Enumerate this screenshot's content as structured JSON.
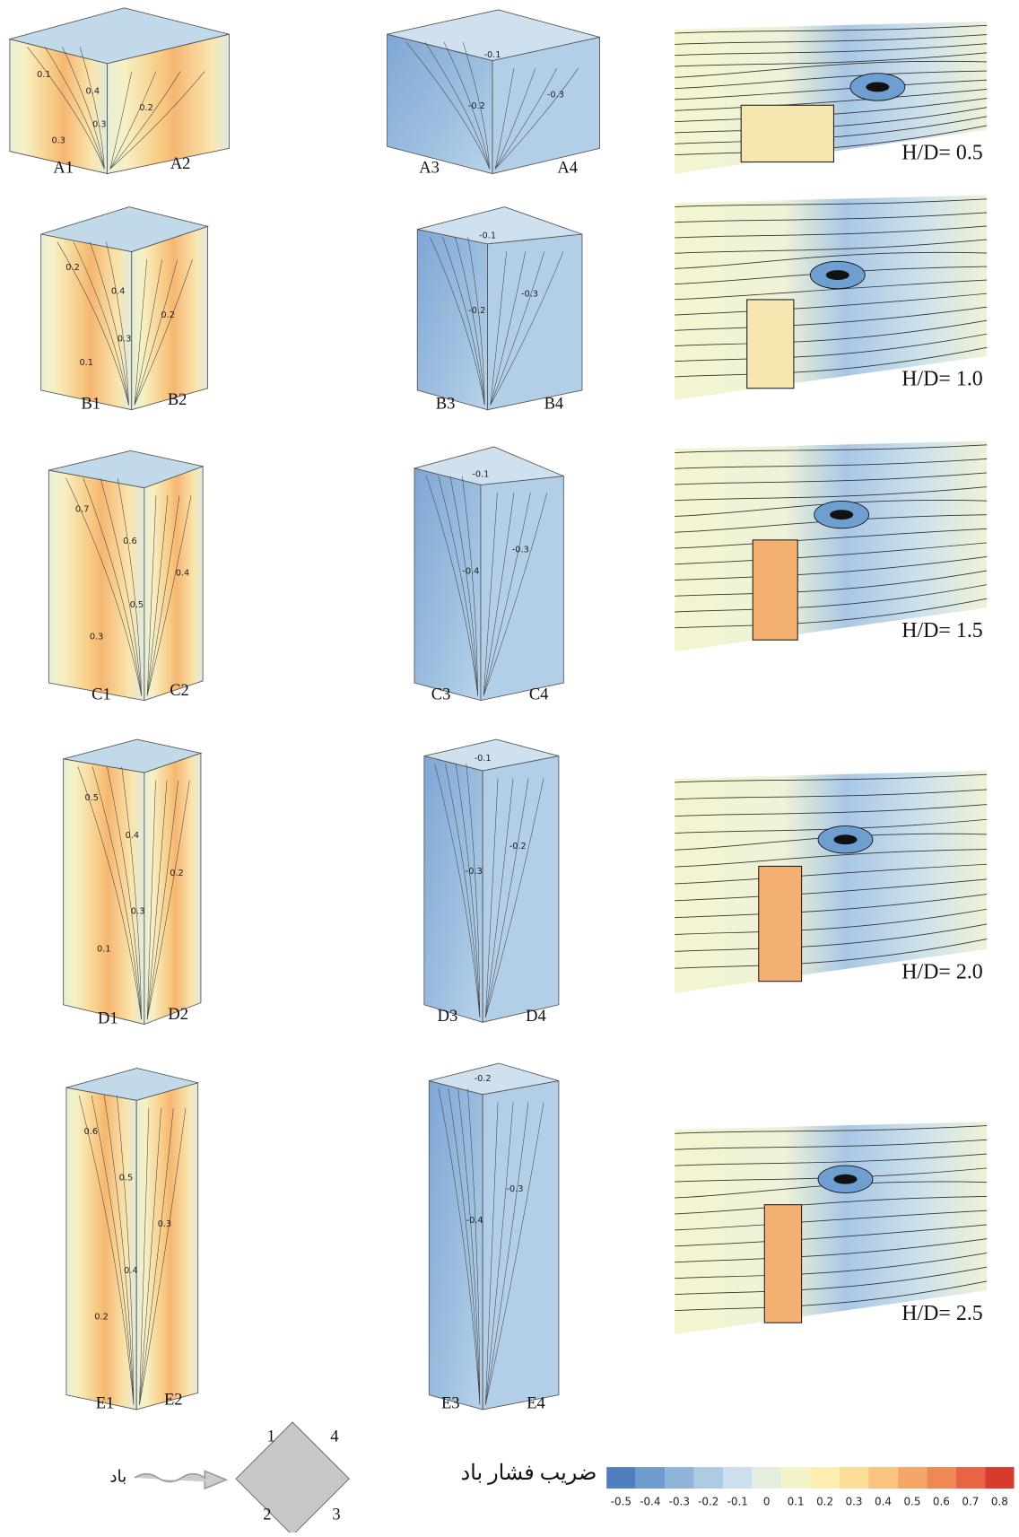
{
  "rows": [
    {
      "faces": [
        "A1",
        "A2",
        "A3",
        "A4"
      ],
      "ratio": "H/D= 0.5",
      "left_contours": [
        0.1,
        0.4,
        0.3,
        0.2,
        0.3
      ],
      "mid_contours": [
        -0.1,
        -0.2,
        -0.3
      ]
    },
    {
      "faces": [
        "B1",
        "B2",
        "B3",
        "B4"
      ],
      "ratio": "H/D= 1.0",
      "left_contours": [
        0.2,
        0.4,
        0.3,
        0.2,
        0.1
      ],
      "mid_contours": [
        -0.1,
        -0.2,
        -0.3
      ]
    },
    {
      "faces": [
        "C1",
        "C2",
        "C3",
        "C4"
      ],
      "ratio": "H/D= 1.5",
      "left_contours": [
        0.7,
        0.6,
        0.5,
        0.4,
        0.3
      ],
      "mid_contours": [
        -0.1,
        -0.4,
        -0.3
      ]
    },
    {
      "faces": [
        "D1",
        "D2",
        "D3",
        "D4"
      ],
      "ratio": "H/D= 2.0",
      "left_contours": [
        0.5,
        0.4,
        0.3,
        0.2,
        0.1
      ],
      "mid_contours": [
        -0.1,
        -0.3,
        -0.2
      ]
    },
    {
      "faces": [
        "E1",
        "E2",
        "E3",
        "E4"
      ],
      "ratio": "H/D= 2.5",
      "left_contours": [
        0.6,
        0.5,
        0.4,
        0.3,
        0.2
      ],
      "mid_contours": [
        -0.2,
        -0.4,
        -0.3
      ]
    }
  ],
  "legend": {
    "title": "ضریب فشار باد",
    "ticks": [
      -0.5,
      -0.4,
      -0.3,
      -0.2,
      -0.1,
      0,
      0.1,
      0.2,
      0.3,
      0.4,
      0.5,
      0.6,
      0.7,
      0.8
    ],
    "colors": [
      "#4f7fbf",
      "#6e9ccf",
      "#8fb4da",
      "#aecbe4",
      "#cbdfee",
      "#e3eedf",
      "#f3f3c8",
      "#fbeeb0",
      "#fbdd98",
      "#f8c47f",
      "#f4a766",
      "#ef8953",
      "#e76543",
      "#d93a2e"
    ]
  },
  "wind": {
    "label": "باد"
  },
  "plan": {
    "labels": [
      "1",
      "4",
      "2",
      "3"
    ]
  }
}
